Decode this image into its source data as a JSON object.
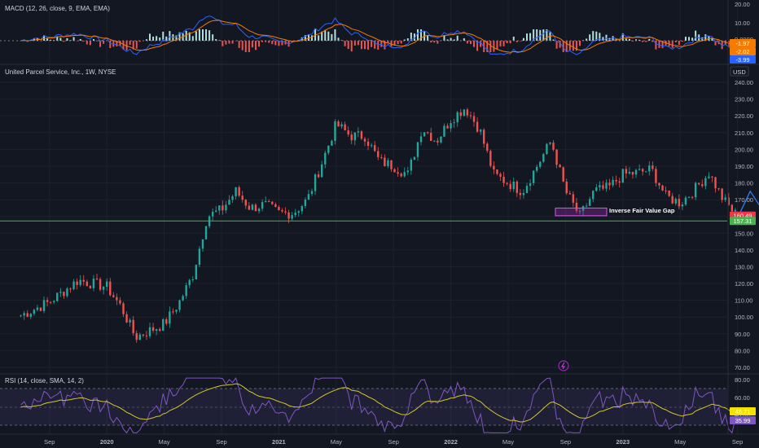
{
  "macd_panel": {
    "label": "MACD (12, 26, close, 9, EMA, EMA)",
    "axis_ticks": [
      "20.00",
      "10.00",
      "0.0000"
    ],
    "badges": [
      {
        "text": "-1.97",
        "color": "#f57c00"
      },
      {
        "text": "-2.02",
        "color": "#f57c00"
      },
      {
        "text": "-3.99",
        "color": "#2962ff"
      }
    ]
  },
  "main_panel": {
    "symbol_label": "United Parcel Service, Inc., 1W, NYSE",
    "currency": "USD",
    "price_ticks": [
      "240.00",
      "230.00",
      "220.00",
      "210.00",
      "200.00",
      "190.00",
      "180.00",
      "170.00",
      "150.00",
      "140.00",
      "130.00",
      "120.00",
      "110.00",
      "100.00",
      "90.00",
      "80.00",
      "70.00"
    ],
    "price_badges": [
      {
        "text": "160.49",
        "color": "#f23645"
      },
      {
        "text": "157.31",
        "color": "#4caf50"
      }
    ],
    "annotation": "Inverse Fair Value Gap"
  },
  "rsi_panel": {
    "label": "RSI (14, close, SMA, 14, 2)",
    "axis_ticks": [
      "80.00",
      "60.00",
      "40.00"
    ],
    "badges": [
      {
        "text": "46.71",
        "color": "#f5e000"
      },
      {
        "text": "35.99",
        "color": "#7e57c2"
      }
    ]
  },
  "time_axis": [
    "Sep",
    "2020",
    "May",
    "Sep",
    "2021",
    "May",
    "Sep",
    "2022",
    "May",
    "Sep",
    "2023",
    "May",
    "Sep",
    "2024",
    "May",
    "Sep"
  ],
  "colors": {
    "background": "#131722",
    "up": "#26a69a",
    "down": "#ef5350",
    "support_line": "#4caf50",
    "projection": "#2962ff",
    "fvg_box": "#9c27b0"
  },
  "chart_data": {
    "type": "candlestick",
    "symbol": "UPS",
    "timeframe": "1W",
    "ylim": [
      70,
      240
    ],
    "support_level": 157.31,
    "last_price": 160.49,
    "fvg_zone": [
      160.4,
      165.0
    ],
    "price_path": [
      {
        "x": "2019-07",
        "y": 101
      },
      {
        "x": "2019-09",
        "y": 109
      },
      {
        "x": "2019-11",
        "y": 122
      },
      {
        "x": "2020-01",
        "y": 118
      },
      {
        "x": "2020-02",
        "y": 106
      },
      {
        "x": "2020-03",
        "y": 88
      },
      {
        "x": "2020-04",
        "y": 92
      },
      {
        "x": "2020-05",
        "y": 96
      },
      {
        "x": "2020-06",
        "y": 108
      },
      {
        "x": "2020-07",
        "y": 125
      },
      {
        "x": "2020-08",
        "y": 160
      },
      {
        "x": "2020-09",
        "y": 164
      },
      {
        "x": "2020-10",
        "y": 175
      },
      {
        "x": "2020-11",
        "y": 165
      },
      {
        "x": "2020-12",
        "y": 167
      },
      {
        "x": "2021-01",
        "y": 162
      },
      {
        "x": "2021-02",
        "y": 162
      },
      {
        "x": "2021-03",
        "y": 170
      },
      {
        "x": "2021-04",
        "y": 192
      },
      {
        "x": "2021-05",
        "y": 215
      },
      {
        "x": "2021-06",
        "y": 208
      },
      {
        "x": "2021-07",
        "y": 208
      },
      {
        "x": "2021-08",
        "y": 193
      },
      {
        "x": "2021-09",
        "y": 190
      },
      {
        "x": "2021-10",
        "y": 185
      },
      {
        "x": "2021-11",
        "y": 213
      },
      {
        "x": "2021-12",
        "y": 205
      },
      {
        "x": "2022-01",
        "y": 218
      },
      {
        "x": "2022-02",
        "y": 225
      },
      {
        "x": "2022-03",
        "y": 212
      },
      {
        "x": "2022-04",
        "y": 185
      },
      {
        "x": "2022-05",
        "y": 180
      },
      {
        "x": "2022-06",
        "y": 175
      },
      {
        "x": "2022-07",
        "y": 190
      },
      {
        "x": "2022-08",
        "y": 205
      },
      {
        "x": "2022-09",
        "y": 175
      },
      {
        "x": "2022-10",
        "y": 160
      },
      {
        "x": "2022-11",
        "y": 175
      },
      {
        "x": "2022-12",
        "y": 177
      },
      {
        "x": "2023-01",
        "y": 185
      },
      {
        "x": "2023-02",
        "y": 186
      },
      {
        "x": "2023-03",
        "y": 188
      },
      {
        "x": "2023-04",
        "y": 172
      },
      {
        "x": "2023-05",
        "y": 168
      },
      {
        "x": "2023-06",
        "y": 176
      },
      {
        "x": "2023-07",
        "y": 186
      },
      {
        "x": "2023-08",
        "y": 170
      },
      {
        "x": "2023-09",
        "y": 160
      }
    ],
    "projection_path": [
      {
        "x": "2023-09",
        "y": 157
      },
      {
        "x": "2023-10",
        "y": 175
      },
      {
        "x": "2023-11",
        "y": 162
      },
      {
        "x": "2024-01",
        "y": 193
      }
    ]
  }
}
